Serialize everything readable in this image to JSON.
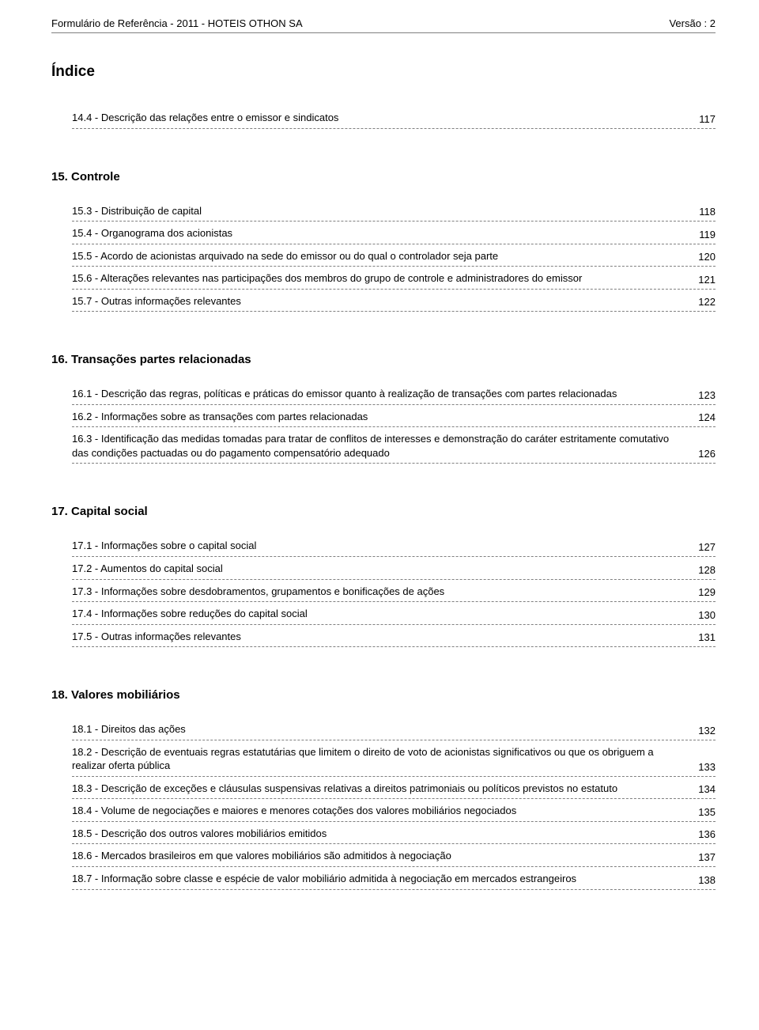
{
  "header": {
    "left": "Formulário de Referência - 2011 - HOTEIS OTHON SA",
    "right": "Versão : 2"
  },
  "index_title": "Índice",
  "standalone_item": {
    "label": "14.4 - Descrição das relações entre o emissor e sindicatos",
    "page": "117"
  },
  "sections": [
    {
      "heading": "15. Controle",
      "items": [
        {
          "label": "15.3 - Distribuição de capital",
          "page": "118"
        },
        {
          "label": "15.4 - Organograma dos acionistas",
          "page": "119"
        },
        {
          "label": "15.5 - Acordo de acionistas arquivado na sede do emissor ou do qual o controlador seja parte",
          "page": "120"
        },
        {
          "label": "15.6 - Alterações relevantes nas participações dos membros do grupo de controle e administradores do emissor",
          "page": "121"
        },
        {
          "label": "15.7 - Outras informações relevantes",
          "page": "122"
        }
      ]
    },
    {
      "heading": "16. Transações partes relacionadas",
      "items": [
        {
          "label": "16.1 - Descrição das regras, políticas e práticas do emissor quanto à realização de transações com partes relacionadas",
          "page": "123"
        },
        {
          "label": "16.2 - Informações sobre as transações com partes relacionadas",
          "page": "124"
        },
        {
          "label": "16.3 - Identificação das medidas tomadas para tratar de conflitos de interesses e demonstração do caráter estritamente comutativo das condições pactuadas ou do pagamento compensatório adequado",
          "page": "126"
        }
      ]
    },
    {
      "heading": "17. Capital social",
      "items": [
        {
          "label": "17.1 - Informações sobre o capital social",
          "page": "127"
        },
        {
          "label": "17.2 - Aumentos do capital social",
          "page": "128"
        },
        {
          "label": "17.3 - Informações sobre desdobramentos, grupamentos e bonificações de ações",
          "page": "129"
        },
        {
          "label": "17.4 - Informações sobre reduções do capital social",
          "page": "130"
        },
        {
          "label": "17.5 - Outras informações relevantes",
          "page": "131"
        }
      ]
    },
    {
      "heading": "18. Valores mobiliários",
      "items": [
        {
          "label": "18.1 - Direitos das ações",
          "page": "132"
        },
        {
          "label": "18.2 - Descrição de eventuais regras estatutárias que limitem o direito de voto de acionistas significativos ou que os obriguem a realizar oferta pública",
          "page": "133"
        },
        {
          "label": "18.3 - Descrição de exceções e cláusulas suspensivas relativas a direitos patrimoniais ou políticos previstos no estatuto",
          "page": "134"
        },
        {
          "label": "18.4 - Volume de negociações e maiores e menores cotações dos valores mobiliários negociados",
          "page": "135"
        },
        {
          "label": "18.5 - Descrição dos outros valores mobiliários emitidos",
          "page": "136"
        },
        {
          "label": "18.6 - Mercados brasileiros em que valores mobiliários são admitidos à negociação",
          "page": "137"
        },
        {
          "label": "18.7 - Informação sobre classe e espécie de valor mobiliário admitida à negociação em mercados estrangeiros",
          "page": "138"
        }
      ]
    }
  ]
}
